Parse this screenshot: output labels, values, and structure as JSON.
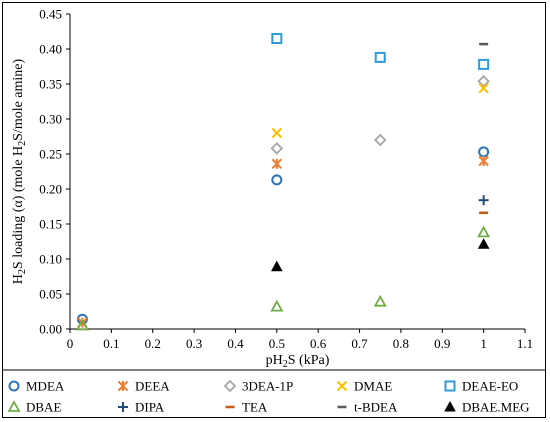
{
  "chart_data": {
    "type": "scatter",
    "title": "",
    "xlabel": "pH₂S (kPa)",
    "xlabel_parts": [
      "pH",
      "2",
      "S (kPa)"
    ],
    "ylabel": "H₂S loading (α) (mole H₂S/mole amine)",
    "ylabel_parts": [
      "H",
      "2",
      "S loading (α) (mole H",
      "2",
      "S/mole amine)"
    ],
    "xlim": [
      0,
      1.1
    ],
    "ylim": [
      0,
      0.45
    ],
    "x_ticks": [
      "0",
      "0.1",
      "0.2",
      "0.3",
      "0.4",
      "0.5",
      "0.6",
      "0.7",
      "0.8",
      "0.9",
      "1",
      "1.1"
    ],
    "x_tick_values": [
      0,
      0.1,
      0.2,
      0.3,
      0.4,
      0.5,
      0.6,
      0.7,
      0.8,
      0.9,
      1.0,
      1.1
    ],
    "y_ticks": [
      "0.00",
      "0.05",
      "0.10",
      "0.15",
      "0.20",
      "0.25",
      "0.30",
      "0.35",
      "0.40",
      "0.45"
    ],
    "y_tick_values": [
      0,
      0.05,
      0.1,
      0.15,
      0.2,
      0.25,
      0.3,
      0.35,
      0.4,
      0.45
    ],
    "grid": false,
    "legend_position": "bottom",
    "series": [
      {
        "name": "MDEA",
        "marker": "circle",
        "color": "#2E75B6",
        "points": [
          [
            0.03,
            0.014
          ],
          [
            0.5,
            0.213
          ],
          [
            1.0,
            0.253
          ]
        ]
      },
      {
        "name": "DEEA",
        "marker": "asterisk",
        "color": "#ED7D31",
        "points": [
          [
            0.03,
            0.009
          ],
          [
            0.5,
            0.236
          ],
          [
            1.0,
            0.24
          ]
        ]
      },
      {
        "name": "3DEA-1P",
        "marker": "diamond",
        "color": "#A5A5A5",
        "points": [
          [
            0.5,
            0.258
          ],
          [
            0.75,
            0.27
          ],
          [
            1.0,
            0.354
          ]
        ]
      },
      {
        "name": "DMAE",
        "marker": "x",
        "color": "#FFC000",
        "points": [
          [
            0.5,
            0.28
          ],
          [
            1.0,
            0.344
          ]
        ]
      },
      {
        "name": "DEAE-EO",
        "marker": "square",
        "color": "#2E9BD6",
        "points": [
          [
            0.5,
            0.415
          ],
          [
            0.75,
            0.388
          ],
          [
            1.0,
            0.378
          ]
        ]
      },
      {
        "name": "DBAE",
        "marker": "triangle-open",
        "color": "#70AD47",
        "points": [
          [
            0.03,
            0.005
          ],
          [
            0.5,
            0.032
          ],
          [
            0.75,
            0.039
          ],
          [
            1.0,
            0.138
          ]
        ]
      },
      {
        "name": "DIPA",
        "marker": "plus",
        "color": "#1F4E79",
        "points": [
          [
            1.0,
            0.184
          ]
        ]
      },
      {
        "name": "TEA",
        "marker": "dash",
        "color": "#C55A11",
        "points": [
          [
            1.0,
            0.166
          ]
        ]
      },
      {
        "name": "t-BDEA",
        "marker": "dash",
        "color": "#595959",
        "points": [
          [
            1.0,
            0.407
          ]
        ]
      },
      {
        "name": "DBAE.MEG",
        "marker": "triangle-filled",
        "color": "#000000",
        "points": [
          [
            0.5,
            0.089
          ],
          [
            1.0,
            0.121
          ]
        ]
      }
    ]
  }
}
